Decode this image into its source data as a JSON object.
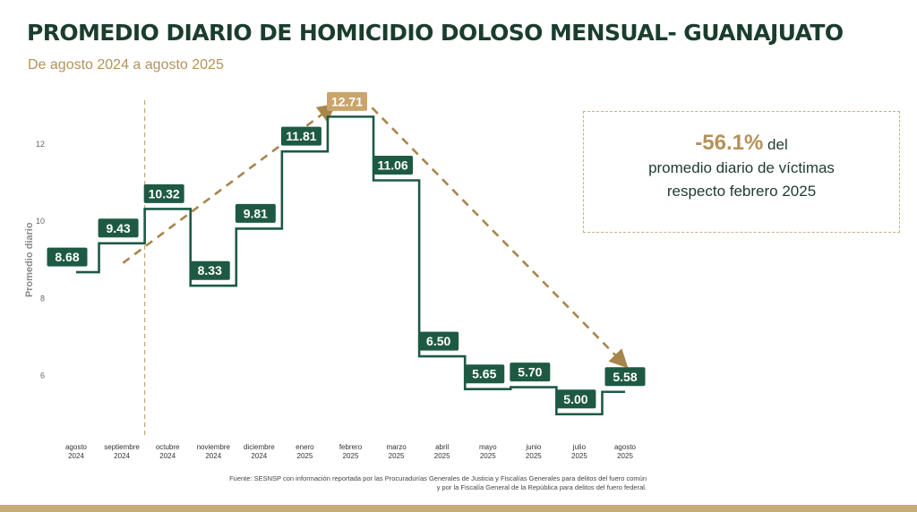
{
  "title": "PROMEDIO DIARIO DE HOMICIDIO DOLOSO MENSUAL- GUANAJUATO",
  "subtitle": "De agosto 2024 a agosto 2025",
  "callout": {
    "percent": "-56.1%",
    "line1_rest": " del",
    "line2": "promedio diario de víctimas",
    "line3": "respecto febrero 2025"
  },
  "source": {
    "line1": "Fuente: SESNSP con información reportada por las Procuradurías Generales de Justicia y Fiscalías Generales para delitos del fuero común",
    "line2": "y por la Fiscalía General de la República para delitos del fuero federal."
  },
  "colors": {
    "line": "#1e5a43",
    "label_bg": "#1e5a43",
    "highlight": "#c9a46c",
    "arrow": "#a8854a",
    "title": "#1a3d2e",
    "accent": "#b5915a"
  },
  "chart_data": {
    "type": "line",
    "style": "step",
    "ylabel": "Promedio diario",
    "yticks": [
      6,
      8,
      10,
      12
    ],
    "ylim": [
      4.6,
      13.6
    ],
    "categories": [
      [
        "agosto",
        "2024"
      ],
      [
        "septiembre",
        "2024"
      ],
      [
        "octubre",
        "2024"
      ],
      [
        "noviembre",
        "2024"
      ],
      [
        "diciembre",
        "2024"
      ],
      [
        "enero",
        "2025"
      ],
      [
        "febrero",
        "2025"
      ],
      [
        "marzo",
        "2025"
      ],
      [
        "abril",
        "2025"
      ],
      [
        "mayo",
        "2025"
      ],
      [
        "junio",
        "2025"
      ],
      [
        "julio",
        "2025"
      ],
      [
        "agosto",
        "2025"
      ]
    ],
    "values": [
      8.68,
      9.43,
      10.32,
      8.33,
      9.81,
      11.81,
      12.71,
      11.06,
      6.5,
      5.65,
      5.7,
      5.0,
      5.58
    ],
    "labels": [
      "8.68",
      "9.43",
      "10.32",
      "8.33",
      "9.81",
      "11.81",
      "12.71",
      "11.06",
      "6.50",
      "5.65",
      "5.70",
      "5.00",
      "5.58"
    ],
    "highlight_index": 6,
    "divider_after_index": 1,
    "trend_arrows": [
      [
        1,
        6
      ],
      [
        6,
        12
      ]
    ]
  }
}
